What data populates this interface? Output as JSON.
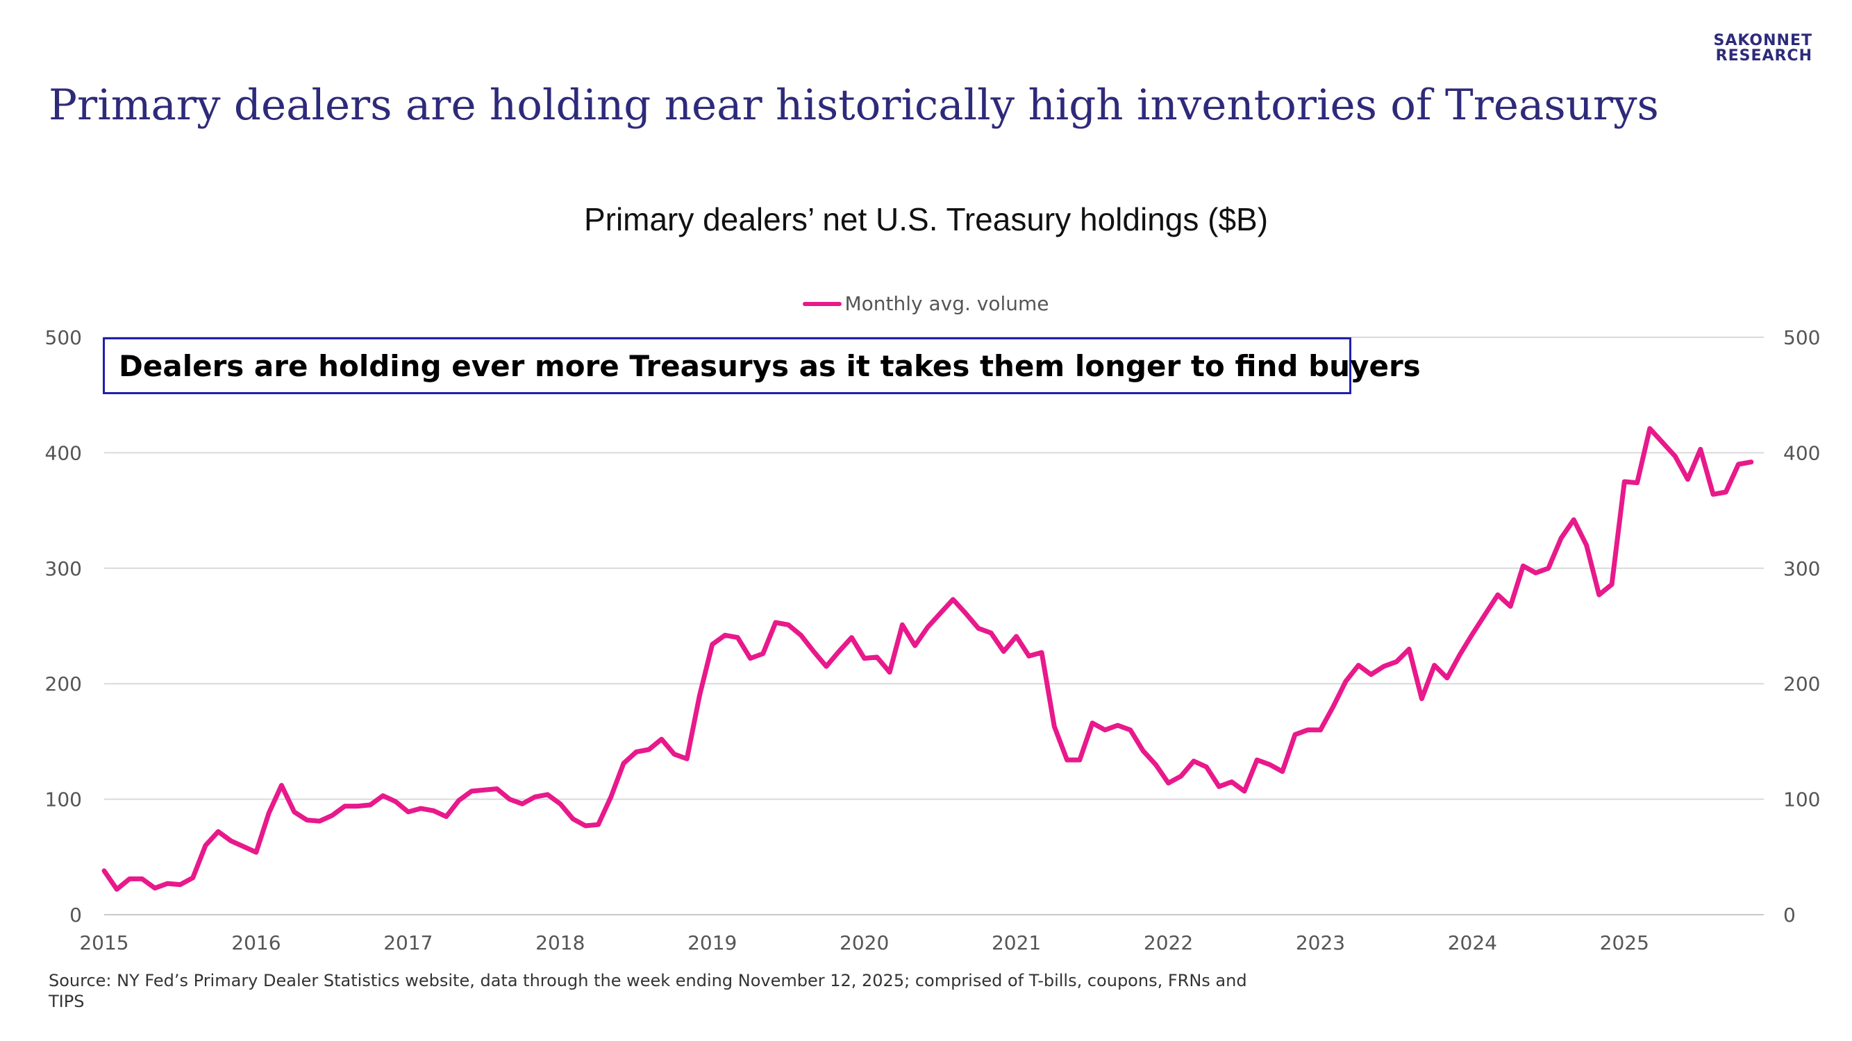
{
  "brand": {
    "line1": "SAKONNET",
    "line2": "RESEARCH"
  },
  "headline": "Primary dealers are holding near historically high inventories of Treasurys",
  "callout": "Dealers are holding ever more Treasurys as it takes them longer to find buyers",
  "source": "Source: NY Fed’s Primary Dealer Statistics website, data through the week ending November 12, 2025; comprised of T-bills, coupons, FRNs and TIPS",
  "colors": {
    "series": "#e8198b",
    "title": "#2e2a7a",
    "callout_border": "#1f1fb0",
    "grid": "#d9d9d9"
  },
  "chart_data": {
    "type": "line",
    "title": "Primary dealers’ net U.S. Treasury holdings ($B)",
    "xlabel": "",
    "ylabel": "",
    "ylim": [
      0,
      500
    ],
    "yticks": [
      0,
      100,
      200,
      300,
      400,
      500
    ],
    "xticks": [
      "2015",
      "2016",
      "2017",
      "2018",
      "2019",
      "2020",
      "2021",
      "2022",
      "2023",
      "2024",
      "2025"
    ],
    "xrange": [
      "2015-01",
      "2025-12"
    ],
    "grid": true,
    "legend": "top-center",
    "dual_y_axis": true,
    "series": [
      {
        "name": "Monthly avg. volume",
        "color": "#e8198b",
        "x": [
          "2015-01",
          "2015-02",
          "2015-03",
          "2015-04",
          "2015-05",
          "2015-06",
          "2015-07",
          "2015-08",
          "2015-09",
          "2015-10",
          "2015-11",
          "2015-12",
          "2016-01",
          "2016-02",
          "2016-03",
          "2016-04",
          "2016-05",
          "2016-06",
          "2016-07",
          "2016-08",
          "2016-09",
          "2016-10",
          "2016-11",
          "2016-12",
          "2017-01",
          "2017-02",
          "2017-03",
          "2017-04",
          "2017-05",
          "2017-06",
          "2017-07",
          "2017-08",
          "2017-09",
          "2017-10",
          "2017-11",
          "2017-12",
          "2018-01",
          "2018-02",
          "2018-03",
          "2018-04",
          "2018-05",
          "2018-06",
          "2018-07",
          "2018-08",
          "2018-09",
          "2018-10",
          "2018-11",
          "2018-12",
          "2019-01",
          "2019-02",
          "2019-03",
          "2019-04",
          "2019-05",
          "2019-06",
          "2019-07",
          "2019-08",
          "2019-09",
          "2019-10",
          "2019-11",
          "2019-12",
          "2020-01",
          "2020-02",
          "2020-03",
          "2020-04",
          "2020-05",
          "2020-06",
          "2020-07",
          "2020-08",
          "2020-09",
          "2020-10",
          "2020-11",
          "2020-12",
          "2021-01",
          "2021-02",
          "2021-03",
          "2021-04",
          "2021-05",
          "2021-06",
          "2021-07",
          "2021-08",
          "2021-09",
          "2021-10",
          "2021-11",
          "2021-12",
          "2022-01",
          "2022-02",
          "2022-03",
          "2022-04",
          "2022-05",
          "2022-06",
          "2022-07",
          "2022-08",
          "2022-09",
          "2022-10",
          "2022-11",
          "2022-12",
          "2023-01",
          "2023-02",
          "2023-03",
          "2023-04",
          "2023-05",
          "2023-06",
          "2023-07",
          "2023-08",
          "2023-09",
          "2023-10",
          "2023-11",
          "2023-12",
          "2024-01",
          "2024-02",
          "2024-03",
          "2024-04",
          "2024-05",
          "2024-06",
          "2024-07",
          "2024-08",
          "2024-09",
          "2024-10",
          "2024-11",
          "2024-12",
          "2025-01",
          "2025-02",
          "2025-03",
          "2025-04",
          "2025-05",
          "2025-06",
          "2025-07",
          "2025-08",
          "2025-09",
          "2025-10",
          "2025-11"
        ],
        "values": [
          38,
          22,
          31,
          31,
          23,
          27,
          26,
          32,
          60,
          72,
          64,
          59,
          54,
          88,
          112,
          89,
          82,
          81,
          86,
          94,
          94,
          95,
          103,
          98,
          89,
          92,
          90,
          85,
          99,
          107,
          108,
          109,
          100,
          96,
          102,
          104,
          96,
          83,
          77,
          78,
          102,
          131,
          141,
          143,
          152,
          139,
          135,
          190,
          234,
          242,
          240,
          222,
          226,
          253,
          251,
          242,
          228,
          215,
          228,
          240,
          222,
          223,
          210,
          251,
          233,
          249,
          261,
          273,
          261,
          248,
          244,
          228,
          241,
          224,
          227,
          163,
          134,
          134,
          166,
          160,
          164,
          160,
          142,
          130,
          114,
          120,
          133,
          128,
          111,
          115,
          107,
          134,
          130,
          124,
          156,
          160,
          160,
          180,
          202,
          216,
          208,
          215,
          219,
          230,
          187,
          216,
          205,
          225,
          243,
          260,
          277,
          267,
          302,
          296,
          300,
          326,
          342,
          320,
          277,
          286,
          375,
          374,
          421,
          409,
          397,
          377,
          403,
          364,
          366,
          390,
          392
        ]
      }
    ]
  }
}
